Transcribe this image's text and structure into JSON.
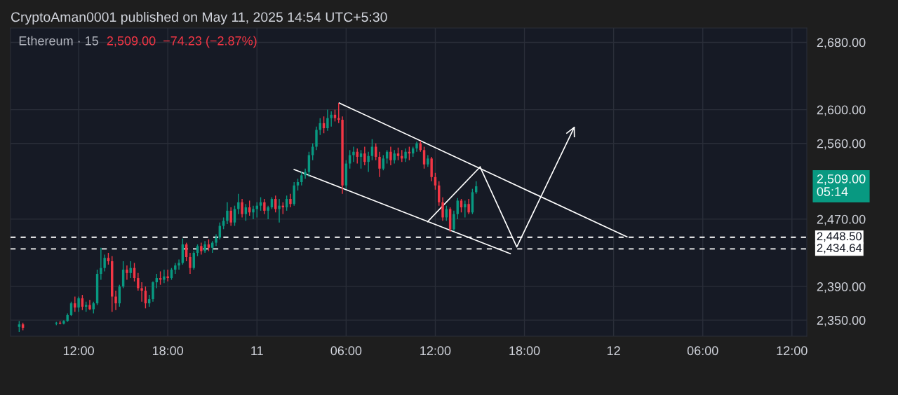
{
  "chart_data": {
    "type": "candlestick",
    "title": "Ethereum · 15",
    "subtitle": "2,509.00  −74.23 (−2.87%)",
    "annotations": [
      "CryptoAman0001 published on May 11, 2025 14:54 UTC+5:30",
      "2,509.00\n05:14"
    ],
    "x": [
      "2025-05-10T08:00",
      "2025-05-10T08:15",
      "2025-05-10T10:30",
      "2025-05-10T10:45",
      "2025-05-10T11:00",
      "2025-05-10T11:15",
      "2025-05-10T11:30",
      "2025-05-10T11:45",
      "2025-05-10T12:00",
      "2025-05-10T12:15",
      "2025-05-10T12:30",
      "2025-05-10T12:45",
      "2025-05-10T13:00",
      "2025-05-10T13:15",
      "2025-05-10T13:30",
      "2025-05-10T13:45",
      "2025-05-10T14:00",
      "2025-05-10T14:15",
      "2025-05-10T14:30",
      "2025-05-10T14:45",
      "2025-05-10T15:00",
      "2025-05-10T15:15",
      "2025-05-10T15:30",
      "2025-05-10T15:45",
      "2025-05-10T16:00",
      "2025-05-10T16:15",
      "2025-05-10T16:30",
      "2025-05-10T16:45",
      "2025-05-10T17:00",
      "2025-05-10T17:15",
      "2025-05-10T17:30",
      "2025-05-10T17:45",
      "2025-05-10T18:00",
      "2025-05-10T18:15",
      "2025-05-10T18:30",
      "2025-05-10T18:45",
      "2025-05-10T19:00",
      "2025-05-10T19:15",
      "2025-05-10T19:30",
      "2025-05-10T19:45",
      "2025-05-10T20:00",
      "2025-05-10T20:15",
      "2025-05-10T20:30",
      "2025-05-10T20:45",
      "2025-05-10T21:00",
      "2025-05-10T21:15",
      "2025-05-10T21:30",
      "2025-05-10T21:45",
      "2025-05-10T22:00",
      "2025-05-10T22:15",
      "2025-05-10T22:30",
      "2025-05-10T22:45",
      "2025-05-10T23:00",
      "2025-05-10T23:15",
      "2025-05-10T23:30",
      "2025-05-10T23:45",
      "2025-05-11T00:00",
      "2025-05-11T00:15",
      "2025-05-11T00:30",
      "2025-05-11T00:45",
      "2025-05-11T01:00",
      "2025-05-11T01:15",
      "2025-05-11T01:30",
      "2025-05-11T01:45",
      "2025-05-11T02:00",
      "2025-05-11T02:15",
      "2025-05-11T02:30",
      "2025-05-11T02:45",
      "2025-05-11T03:00",
      "2025-05-11T03:15",
      "2025-05-11T03:30",
      "2025-05-11T03:45",
      "2025-05-11T04:00",
      "2025-05-11T04:15",
      "2025-05-11T04:30",
      "2025-05-11T04:45",
      "2025-05-11T05:00",
      "2025-05-11T05:15",
      "2025-05-11T05:30",
      "2025-05-11T05:45",
      "2025-05-11T06:00",
      "2025-05-11T06:15",
      "2025-05-11T06:30",
      "2025-05-11T06:45",
      "2025-05-11T07:00",
      "2025-05-11T07:15",
      "2025-05-11T07:30",
      "2025-05-11T07:45",
      "2025-05-11T08:00",
      "2025-05-11T08:15",
      "2025-05-11T08:30",
      "2025-05-11T08:45",
      "2025-05-11T09:00",
      "2025-05-11T09:15",
      "2025-05-11T09:30",
      "2025-05-11T09:45",
      "2025-05-11T10:00",
      "2025-05-11T10:15",
      "2025-05-11T10:30",
      "2025-05-11T10:45",
      "2025-05-11T11:00",
      "2025-05-11T11:15",
      "2025-05-11T11:30",
      "2025-05-11T11:45",
      "2025-05-11T12:00",
      "2025-05-11T12:15",
      "2025-05-11T12:30",
      "2025-05-11T12:45",
      "2025-05-11T13:00",
      "2025-05-11T13:15",
      "2025-05-11T13:30",
      "2025-05-11T13:45",
      "2025-05-11T14:00",
      "2025-05-11T14:15",
      "2025-05-11T14:30",
      "2025-05-11T14:45"
    ],
    "ohlc": [
      [
        2342,
        2349,
        2336,
        2345
      ],
      [
        2345,
        2347,
        2338,
        2341
      ],
      [
        2346,
        2348,
        2344,
        2347
      ],
      [
        2347,
        2349,
        2345,
        2346
      ],
      [
        2346,
        2350,
        2345,
        2349
      ],
      [
        2349,
        2358,
        2348,
        2356
      ],
      [
        2356,
        2372,
        2355,
        2370
      ],
      [
        2370,
        2378,
        2360,
        2365
      ],
      [
        2365,
        2378,
        2360,
        2376
      ],
      [
        2376,
        2380,
        2362,
        2366
      ],
      [
        2366,
        2372,
        2360,
        2368
      ],
      [
        2368,
        2374,
        2362,
        2363
      ],
      [
        2363,
        2372,
        2358,
        2370
      ],
      [
        2370,
        2410,
        2368,
        2405
      ],
      [
        2405,
        2436,
        2398,
        2412
      ],
      [
        2412,
        2428,
        2408,
        2424
      ],
      [
        2424,
        2430,
        2416,
        2420
      ],
      [
        2420,
        2426,
        2360,
        2378
      ],
      [
        2378,
        2385,
        2362,
        2370
      ],
      [
        2370,
        2392,
        2366,
        2390
      ],
      [
        2390,
        2420,
        2388,
        2410
      ],
      [
        2410,
        2415,
        2398,
        2406
      ],
      [
        2406,
        2420,
        2400,
        2412
      ],
      [
        2412,
        2418,
        2396,
        2400
      ],
      [
        2400,
        2406,
        2385,
        2388
      ],
      [
        2388,
        2395,
        2372,
        2385
      ],
      [
        2385,
        2390,
        2364,
        2370
      ],
      [
        2370,
        2380,
        2366,
        2375
      ],
      [
        2375,
        2396,
        2372,
        2395
      ],
      [
        2395,
        2405,
        2388,
        2400
      ],
      [
        2400,
        2408,
        2392,
        2398
      ],
      [
        2398,
        2410,
        2394,
        2402
      ],
      [
        2402,
        2410,
        2396,
        2400
      ],
      [
        2400,
        2412,
        2398,
        2410
      ],
      [
        2410,
        2418,
        2405,
        2415
      ],
      [
        2415,
        2422,
        2410,
        2418
      ],
      [
        2418,
        2447,
        2416,
        2440
      ],
      [
        2440,
        2442,
        2420,
        2425
      ],
      [
        2425,
        2430,
        2405,
        2412
      ],
      [
        2412,
        2432,
        2410,
        2430
      ],
      [
        2430,
        2440,
        2426,
        2438
      ],
      [
        2438,
        2442,
        2428,
        2432
      ],
      [
        2432,
        2444,
        2430,
        2440
      ],
      [
        2440,
        2446,
        2432,
        2436
      ],
      [
        2436,
        2444,
        2430,
        2442
      ],
      [
        2442,
        2452,
        2438,
        2448
      ],
      [
        2448,
        2466,
        2446,
        2462
      ],
      [
        2462,
        2472,
        2458,
        2468
      ],
      [
        2468,
        2490,
        2464,
        2480
      ],
      [
        2480,
        2484,
        2462,
        2466
      ],
      [
        2466,
        2486,
        2462,
        2482
      ],
      [
        2482,
        2500,
        2476,
        2490
      ],
      [
        2490,
        2494,
        2472,
        2476
      ],
      [
        2476,
        2488,
        2468,
        2484
      ],
      [
        2484,
        2492,
        2474,
        2478
      ],
      [
        2478,
        2486,
        2470,
        2482
      ],
      [
        2482,
        2490,
        2472,
        2486
      ],
      [
        2486,
        2496,
        2480,
        2490
      ],
      [
        2490,
        2494,
        2476,
        2480
      ],
      [
        2480,
        2486,
        2470,
        2484
      ],
      [
        2484,
        2496,
        2482,
        2494
      ],
      [
        2494,
        2498,
        2478,
        2482
      ],
      [
        2482,
        2494,
        2466,
        2486
      ],
      [
        2486,
        2490,
        2476,
        2484
      ],
      [
        2484,
        2498,
        2480,
        2494
      ],
      [
        2494,
        2500,
        2484,
        2488
      ],
      [
        2488,
        2514,
        2486,
        2510
      ],
      [
        2510,
        2518,
        2504,
        2514
      ],
      [
        2514,
        2526,
        2510,
        2522
      ],
      [
        2522,
        2530,
        2518,
        2526
      ],
      [
        2526,
        2550,
        2520,
        2546
      ],
      [
        2546,
        2560,
        2540,
        2556
      ],
      [
        2556,
        2580,
        2552,
        2576
      ],
      [
        2576,
        2590,
        2570,
        2584
      ],
      [
        2584,
        2592,
        2572,
        2578
      ],
      [
        2578,
        2600,
        2575,
        2590
      ],
      [
        2590,
        2598,
        2580,
        2594
      ],
      [
        2594,
        2600,
        2586,
        2590
      ],
      [
        2590,
        2608,
        2584,
        2588
      ],
      [
        2588,
        2592,
        2500,
        2510
      ],
      [
        2510,
        2540,
        2506,
        2536
      ],
      [
        2536,
        2552,
        2530,
        2546
      ],
      [
        2546,
        2556,
        2538,
        2550
      ],
      [
        2550,
        2554,
        2536,
        2544
      ],
      [
        2544,
        2552,
        2530,
        2548
      ],
      [
        2548,
        2556,
        2534,
        2538
      ],
      [
        2538,
        2550,
        2526,
        2545
      ],
      [
        2545,
        2565,
        2540,
        2556
      ],
      [
        2556,
        2560,
        2540,
        2544
      ],
      [
        2544,
        2550,
        2520,
        2530
      ],
      [
        2530,
        2546,
        2528,
        2542
      ],
      [
        2542,
        2552,
        2536,
        2550
      ],
      [
        2550,
        2556,
        2534,
        2540
      ],
      [
        2540,
        2552,
        2536,
        2548
      ],
      [
        2548,
        2555,
        2540,
        2545
      ],
      [
        2545,
        2552,
        2538,
        2542
      ],
      [
        2542,
        2554,
        2538,
        2550
      ],
      [
        2550,
        2556,
        2540,
        2548
      ],
      [
        2548,
        2556,
        2544,
        2554
      ],
      [
        2554,
        2562,
        2550,
        2560
      ],
      [
        2560,
        2563,
        2550,
        2552
      ],
      [
        2552,
        2556,
        2530,
        2535
      ],
      [
        2535,
        2546,
        2532,
        2542
      ],
      [
        2542,
        2544,
        2515,
        2520
      ],
      [
        2520,
        2525,
        2505,
        2510
      ],
      [
        2510,
        2515,
        2486,
        2490
      ],
      [
        2490,
        2496,
        2468,
        2472
      ],
      [
        2472,
        2486,
        2468,
        2482
      ],
      [
        2482,
        2484,
        2455,
        2458
      ],
      [
        2458,
        2480,
        2456,
        2476
      ],
      [
        2476,
        2495,
        2470,
        2492
      ],
      [
        2492,
        2494,
        2478,
        2484
      ],
      [
        2484,
        2492,
        2472,
        2488
      ],
      [
        2488,
        2494,
        2476,
        2478
      ],
      [
        2478,
        2506,
        2476,
        2502
      ],
      [
        2502,
        2515,
        2500,
        2509
      ]
    ],
    "colors": [
      "#089981",
      "#f23645",
      "#089981",
      "#f23645",
      "#089981",
      "#089981",
      "#089981",
      "#f23645",
      "#089981",
      "#f23645",
      "#089981",
      "#f23645",
      "#089981",
      "#089981",
      "#089981",
      "#089981",
      "#f23645",
      "#f23645",
      "#f23645",
      "#089981",
      "#089981",
      "#f23645",
      "#089981",
      "#f23645",
      "#f23645",
      "#f23645",
      "#f23645",
      "#089981",
      "#089981",
      "#089981",
      "#f23645",
      "#089981",
      "#f23645",
      "#089981",
      "#089981",
      "#089981",
      "#089981",
      "#f23645",
      "#f23645",
      "#089981",
      "#089981",
      "#f23645",
      "#089981",
      "#f23645",
      "#089981",
      "#089981",
      "#089981",
      "#089981",
      "#089981",
      "#f23645",
      "#089981",
      "#089981",
      "#f23645",
      "#089981",
      "#f23645",
      "#089981",
      "#089981",
      "#089981",
      "#f23645",
      "#089981",
      "#089981",
      "#f23645",
      "#089981",
      "#f23645",
      "#089981",
      "#f23645",
      "#089981",
      "#089981",
      "#089981",
      "#089981",
      "#089981",
      "#089981",
      "#089981",
      "#089981",
      "#f23645",
      "#089981",
      "#089981",
      "#f23645",
      "#f23645",
      "#f23645",
      "#089981",
      "#089981",
      "#089981",
      "#f23645",
      "#089981",
      "#f23645",
      "#089981",
      "#089981",
      "#f23645",
      "#f23645",
      "#089981",
      "#089981",
      "#f23645",
      "#089981",
      "#f23645",
      "#f23645",
      "#089981",
      "#f23645",
      "#089981",
      "#089981",
      "#f23645",
      "#f23645",
      "#089981",
      "#f23645",
      "#f23645",
      "#f23645",
      "#f23645",
      "#089981",
      "#f23645",
      "#089981",
      "#089981",
      "#f23645",
      "#089981",
      "#f23645",
      "#089981",
      "#089981"
    ],
    "series": [
      {
        "type": "line",
        "color": "#ffffff",
        "x": [
          "2025-05-11T05:32",
          "2025-05-12T00:54"
        ],
        "values": [
          2608,
          2449
        ]
      },
      {
        "type": "line",
        "color": "#ffffff",
        "x": [
          "2025-05-11T02:30",
          "2025-05-11T17:03"
        ],
        "values": [
          2529,
          2429
        ]
      },
      {
        "type": "line",
        "color": "#ffffff",
        "x": [
          "2025-05-11T11:29",
          "2025-05-11T15:01"
        ],
        "values": [
          2467,
          2532
        ]
      },
      {
        "type": "line",
        "color": "#ffffff",
        "x": [
          "2025-05-11T15:01",
          "2025-05-11T17:29",
          "2025-05-11T21:21"
        ],
        "values": [
          2532,
          2437,
          2579
        ]
      }
    ],
    "ref_lines": [
      {
        "axis": "y",
        "value": 2448.5,
        "label": "2,448.50",
        "color": "#ffffff",
        "line_style": "dashed"
      },
      {
        "axis": "y",
        "value": 2434.64,
        "label": "2,434.64",
        "color": "#ffffff",
        "line_style": "dashed"
      }
    ],
    "xlim": [
      "2025-05-10T07:25",
      "2025-05-12T13:00"
    ],
    "xticks": [
      {
        "value": "2025-05-10T12:00",
        "label": "12:00"
      },
      {
        "value": "2025-05-10T18:00",
        "label": "18:00"
      },
      {
        "value": "2025-05-11T00:00",
        "label": "11"
      },
      {
        "value": "2025-05-11T06:00",
        "label": "06:00"
      },
      {
        "value": "2025-05-11T12:00",
        "label": "12:00"
      },
      {
        "value": "2025-05-11T18:00",
        "label": "18:00"
      },
      {
        "value": "2025-05-12T00:00",
        "label": "12"
      },
      {
        "value": "2025-05-12T06:00",
        "label": "06:00"
      },
      {
        "value": "2025-05-12T12:00",
        "label": "12:00"
      }
    ],
    "ylim": [
      2331,
      2697
    ],
    "yticks": [
      {
        "value": 2350,
        "label": "2,350.00"
      },
      {
        "value": 2390,
        "label": "2,390.00"
      },
      {
        "value": 2470,
        "label": "2,470.00"
      },
      {
        "value": 2560,
        "label": "2,560.00"
      },
      {
        "value": 2600,
        "label": "2,600.00"
      },
      {
        "value": 2680,
        "label": "2,680.00"
      }
    ],
    "grid": true
  }
}
